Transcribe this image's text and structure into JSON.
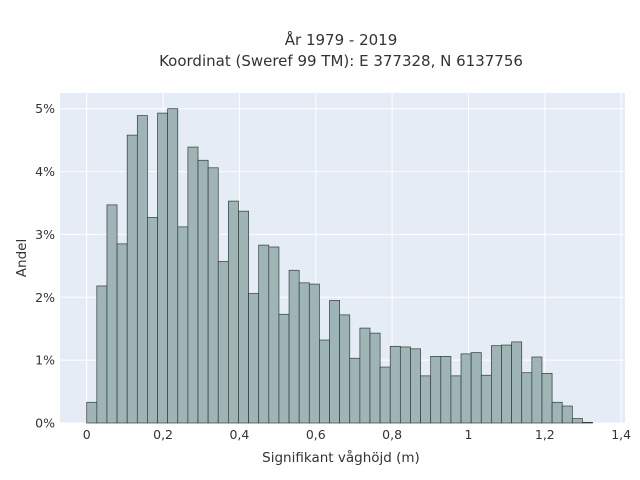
{
  "chart_data": {
    "type": "bar",
    "title": "År 1979 - 2019",
    "subtitle": "Koordinat (Sweref 99 TM): E 377328, N 6137756",
    "xlabel": "Signifikant våghöjd (m)",
    "ylabel": "Andel",
    "xlim": [
      -0.07,
      1.41
    ],
    "ylim": [
      0,
      0.0525
    ],
    "x_ticks": [
      {
        "value": 0,
        "label": "0"
      },
      {
        "value": 0.2,
        "label": "0,2"
      },
      {
        "value": 0.4,
        "label": "0,4"
      },
      {
        "value": 0.6,
        "label": "0,6"
      },
      {
        "value": 0.8,
        "label": "0,8"
      },
      {
        "value": 1.0,
        "label": "1"
      },
      {
        "value": 1.2,
        "label": "1,2"
      },
      {
        "value": 1.4,
        "label": "1,4"
      }
    ],
    "y_ticks": [
      {
        "value": 0,
        "label": "0%"
      },
      {
        "value": 0.01,
        "label": "1%"
      },
      {
        "value": 0.02,
        "label": "2%"
      },
      {
        "value": 0.03,
        "label": "3%"
      },
      {
        "value": 0.04,
        "label": "4%"
      },
      {
        "value": 0.05,
        "label": "5%"
      }
    ],
    "grid": true,
    "bar_color": "#9fb5b5",
    "bar_edge_color": "#2f3b3b",
    "plot_background": "#e5ecf6",
    "bin_width": 0.0265,
    "bin_start": 0.0,
    "values": [
      0.0033,
      0.0218,
      0.0347,
      0.0285,
      0.0458,
      0.0489,
      0.0327,
      0.0493,
      0.05,
      0.0312,
      0.0439,
      0.0418,
      0.0406,
      0.0257,
      0.0353,
      0.0337,
      0.0206,
      0.0283,
      0.028,
      0.0173,
      0.0243,
      0.0223,
      0.0221,
      0.0132,
      0.0195,
      0.0172,
      0.0103,
      0.0151,
      0.0143,
      0.0089,
      0.0122,
      0.0121,
      0.0118,
      0.0075,
      0.0106,
      0.0106,
      0.0075,
      0.011,
      0.0112,
      0.0076,
      0.0123,
      0.0124,
      0.0129,
      0.008,
      0.0105,
      0.0079,
      0.0033,
      0.0027,
      0.0007,
      0.0001
    ]
  }
}
